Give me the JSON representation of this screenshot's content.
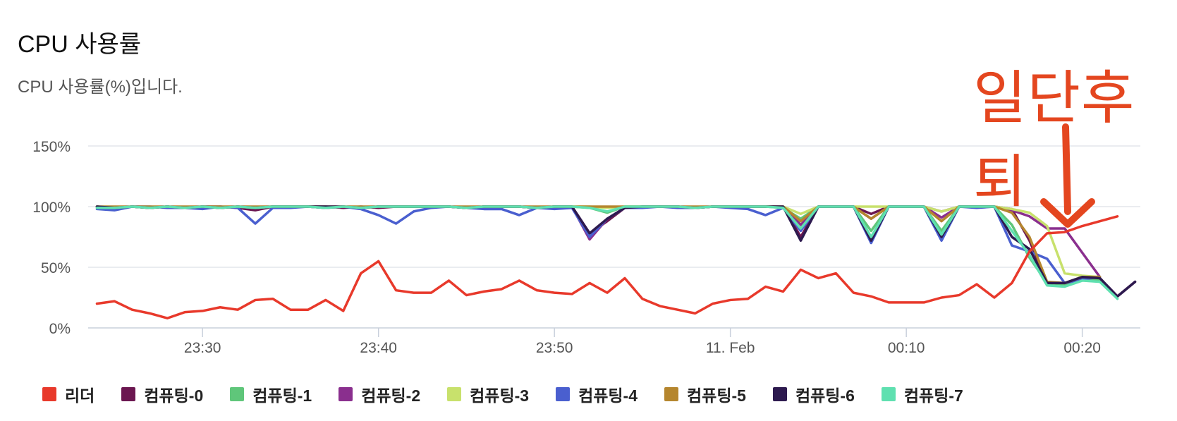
{
  "header": {
    "title": "CPU 사용률",
    "subtitle": "CPU 사용률(%)입니다."
  },
  "annotation": {
    "text": "일단후퇴",
    "color": "#e4461f"
  },
  "chart_data": {
    "type": "line",
    "x_axis_type": "time",
    "x_start": "23:23",
    "x_step_minutes": 1,
    "x_ticks": [
      {
        "minute": 7,
        "label": "23:30"
      },
      {
        "minute": 17,
        "label": "23:40"
      },
      {
        "minute": 27,
        "label": "23:50"
      },
      {
        "minute": 37,
        "label": "11. Feb"
      },
      {
        "minute": 47,
        "label": "00:10"
      },
      {
        "minute": 57,
        "label": "00:20"
      }
    ],
    "y_ticks": [
      {
        "value": 0,
        "label": "0%"
      },
      {
        "value": 50,
        "label": "50%"
      },
      {
        "value": 100,
        "label": "100%"
      },
      {
        "value": 150,
        "label": "150%"
      }
    ],
    "ylim": [
      0,
      160
    ],
    "xlim": [
      0.5,
      60.3
    ],
    "grid": true,
    "legend_position": "bottom",
    "series": [
      {
        "name": "리더",
        "color": "#e8392b",
        "values": [
          20,
          22,
          15,
          12,
          8,
          13,
          14,
          17,
          15,
          23,
          24,
          15,
          15,
          23,
          14,
          45,
          55,
          31,
          29,
          29,
          39,
          27,
          30,
          32,
          39,
          31,
          29,
          28,
          37,
          29,
          41,
          24,
          18,
          15,
          12,
          20,
          23,
          24,
          34,
          30,
          48,
          41,
          45,
          29,
          26,
          21,
          21,
          21,
          25,
          27,
          36,
          25,
          37,
          63,
          78,
          79,
          84,
          88,
          92
        ]
      },
      {
        "name": "컴퓨팅-0",
        "color": "#6b1650",
        "values": [
          100,
          99,
          100,
          99,
          100,
          99,
          100,
          100,
          99,
          97,
          100,
          100,
          100,
          100,
          99,
          100,
          99,
          100,
          100,
          100,
          100,
          99,
          100,
          100,
          100,
          99,
          100,
          100,
          78,
          88,
          99,
          100,
          100,
          100,
          99,
          100,
          100,
          100,
          100,
          100,
          75,
          100,
          100,
          100,
          94,
          100,
          100,
          100,
          96,
          100,
          100,
          100,
          98,
          72,
          37,
          37,
          42,
          41,
          26,
          38
        ]
      },
      {
        "name": "컴퓨팅-1",
        "color": "#5fc67a",
        "values": [
          100,
          99,
          100,
          99,
          100,
          99,
          100,
          99,
          100,
          99,
          100,
          100,
          100,
          99,
          100,
          99,
          100,
          100,
          100,
          100,
          100,
          99,
          100,
          100,
          100,
          99,
          100,
          100,
          99,
          95,
          100,
          100,
          100,
          100,
          99,
          100,
          100,
          100,
          100,
          99,
          90,
          100,
          100,
          100,
          80,
          100,
          100,
          100,
          80,
          100,
          100,
          100,
          85,
          58,
          37,
          36,
          40,
          40
        ]
      },
      {
        "name": "컴퓨팅-2",
        "color": "#8a2f8e",
        "values": [
          100,
          99,
          100,
          99,
          100,
          99,
          100,
          99,
          100,
          99,
          100,
          100,
          100,
          99,
          100,
          99,
          100,
          100,
          100,
          100,
          100,
          99,
          100,
          100,
          100,
          99,
          100,
          100,
          73,
          90,
          99,
          100,
          100,
          100,
          99,
          100,
          100,
          100,
          100,
          100,
          85,
          100,
          100,
          100,
          90,
          100,
          100,
          100,
          91,
          100,
          100,
          100,
          97,
          92,
          82,
          82,
          62,
          42
        ]
      },
      {
        "name": "컴퓨팅-3",
        "color": "#c8e16c",
        "values": [
          100,
          99,
          100,
          99,
          100,
          99,
          100,
          99,
          100,
          99,
          100,
          100,
          100,
          99,
          100,
          99,
          100,
          100,
          100,
          100,
          100,
          99,
          100,
          100,
          100,
          99,
          100,
          100,
          100,
          99,
          100,
          100,
          100,
          100,
          99,
          100,
          100,
          100,
          100,
          100,
          94,
          100,
          100,
          100,
          100,
          100,
          100,
          100,
          96,
          100,
          100,
          100,
          98,
          95,
          84,
          45,
          43,
          42
        ]
      },
      {
        "name": "컴퓨팅-4",
        "color": "#4a5fcf",
        "values": [
          98,
          97,
          100,
          100,
          99,
          99,
          98,
          100,
          99,
          86,
          99,
          99,
          100,
          99,
          100,
          98,
          93,
          86,
          96,
          99,
          100,
          99,
          98,
          98,
          93,
          99,
          98,
          99,
          75,
          90,
          99,
          99,
          100,
          99,
          99,
          100,
          99,
          98,
          93,
          99,
          80,
          100,
          100,
          100,
          70,
          100,
          100,
          100,
          72,
          100,
          99,
          100,
          68,
          63,
          57,
          37,
          40,
          42
        ]
      },
      {
        "name": "컴퓨팅-5",
        "color": "#b5862e",
        "values": [
          100,
          100,
          100,
          100,
          100,
          100,
          100,
          100,
          100,
          100,
          100,
          100,
          100,
          100,
          100,
          100,
          100,
          100,
          100,
          100,
          100,
          100,
          100,
          100,
          100,
          100,
          100,
          100,
          100,
          100,
          100,
          100,
          100,
          100,
          100,
          100,
          100,
          100,
          100,
          100,
          88,
          100,
          100,
          100,
          90,
          100,
          100,
          100,
          88,
          100,
          100,
          100,
          95,
          75,
          38,
          37,
          42,
          42
        ]
      },
      {
        "name": "컴퓨팅-6",
        "color": "#2d1a4f",
        "values": [
          100,
          99,
          100,
          99,
          100,
          99,
          100,
          99,
          100,
          99,
          100,
          100,
          100,
          100,
          100,
          99,
          100,
          100,
          100,
          100,
          100,
          99,
          100,
          100,
          100,
          99,
          100,
          100,
          78,
          90,
          99,
          100,
          100,
          100,
          99,
          100,
          100,
          100,
          100,
          100,
          72,
          100,
          100,
          100,
          72,
          100,
          100,
          100,
          75,
          100,
          100,
          100,
          75,
          65,
          37,
          37,
          42,
          41,
          26,
          38
        ]
      },
      {
        "name": "컴퓨팅-7",
        "color": "#5fe0b0",
        "values": [
          99,
          99,
          100,
          99,
          100,
          99,
          100,
          99,
          100,
          99,
          100,
          100,
          100,
          99,
          100,
          99,
          100,
          100,
          100,
          100,
          100,
          99,
          100,
          100,
          100,
          99,
          100,
          100,
          99,
          96,
          100,
          100,
          100,
          100,
          99,
          100,
          100,
          100,
          100,
          99,
          82,
          100,
          100,
          100,
          75,
          100,
          100,
          100,
          77,
          100,
          100,
          100,
          80,
          60,
          35,
          34,
          39,
          38,
          24
        ]
      }
    ]
  }
}
